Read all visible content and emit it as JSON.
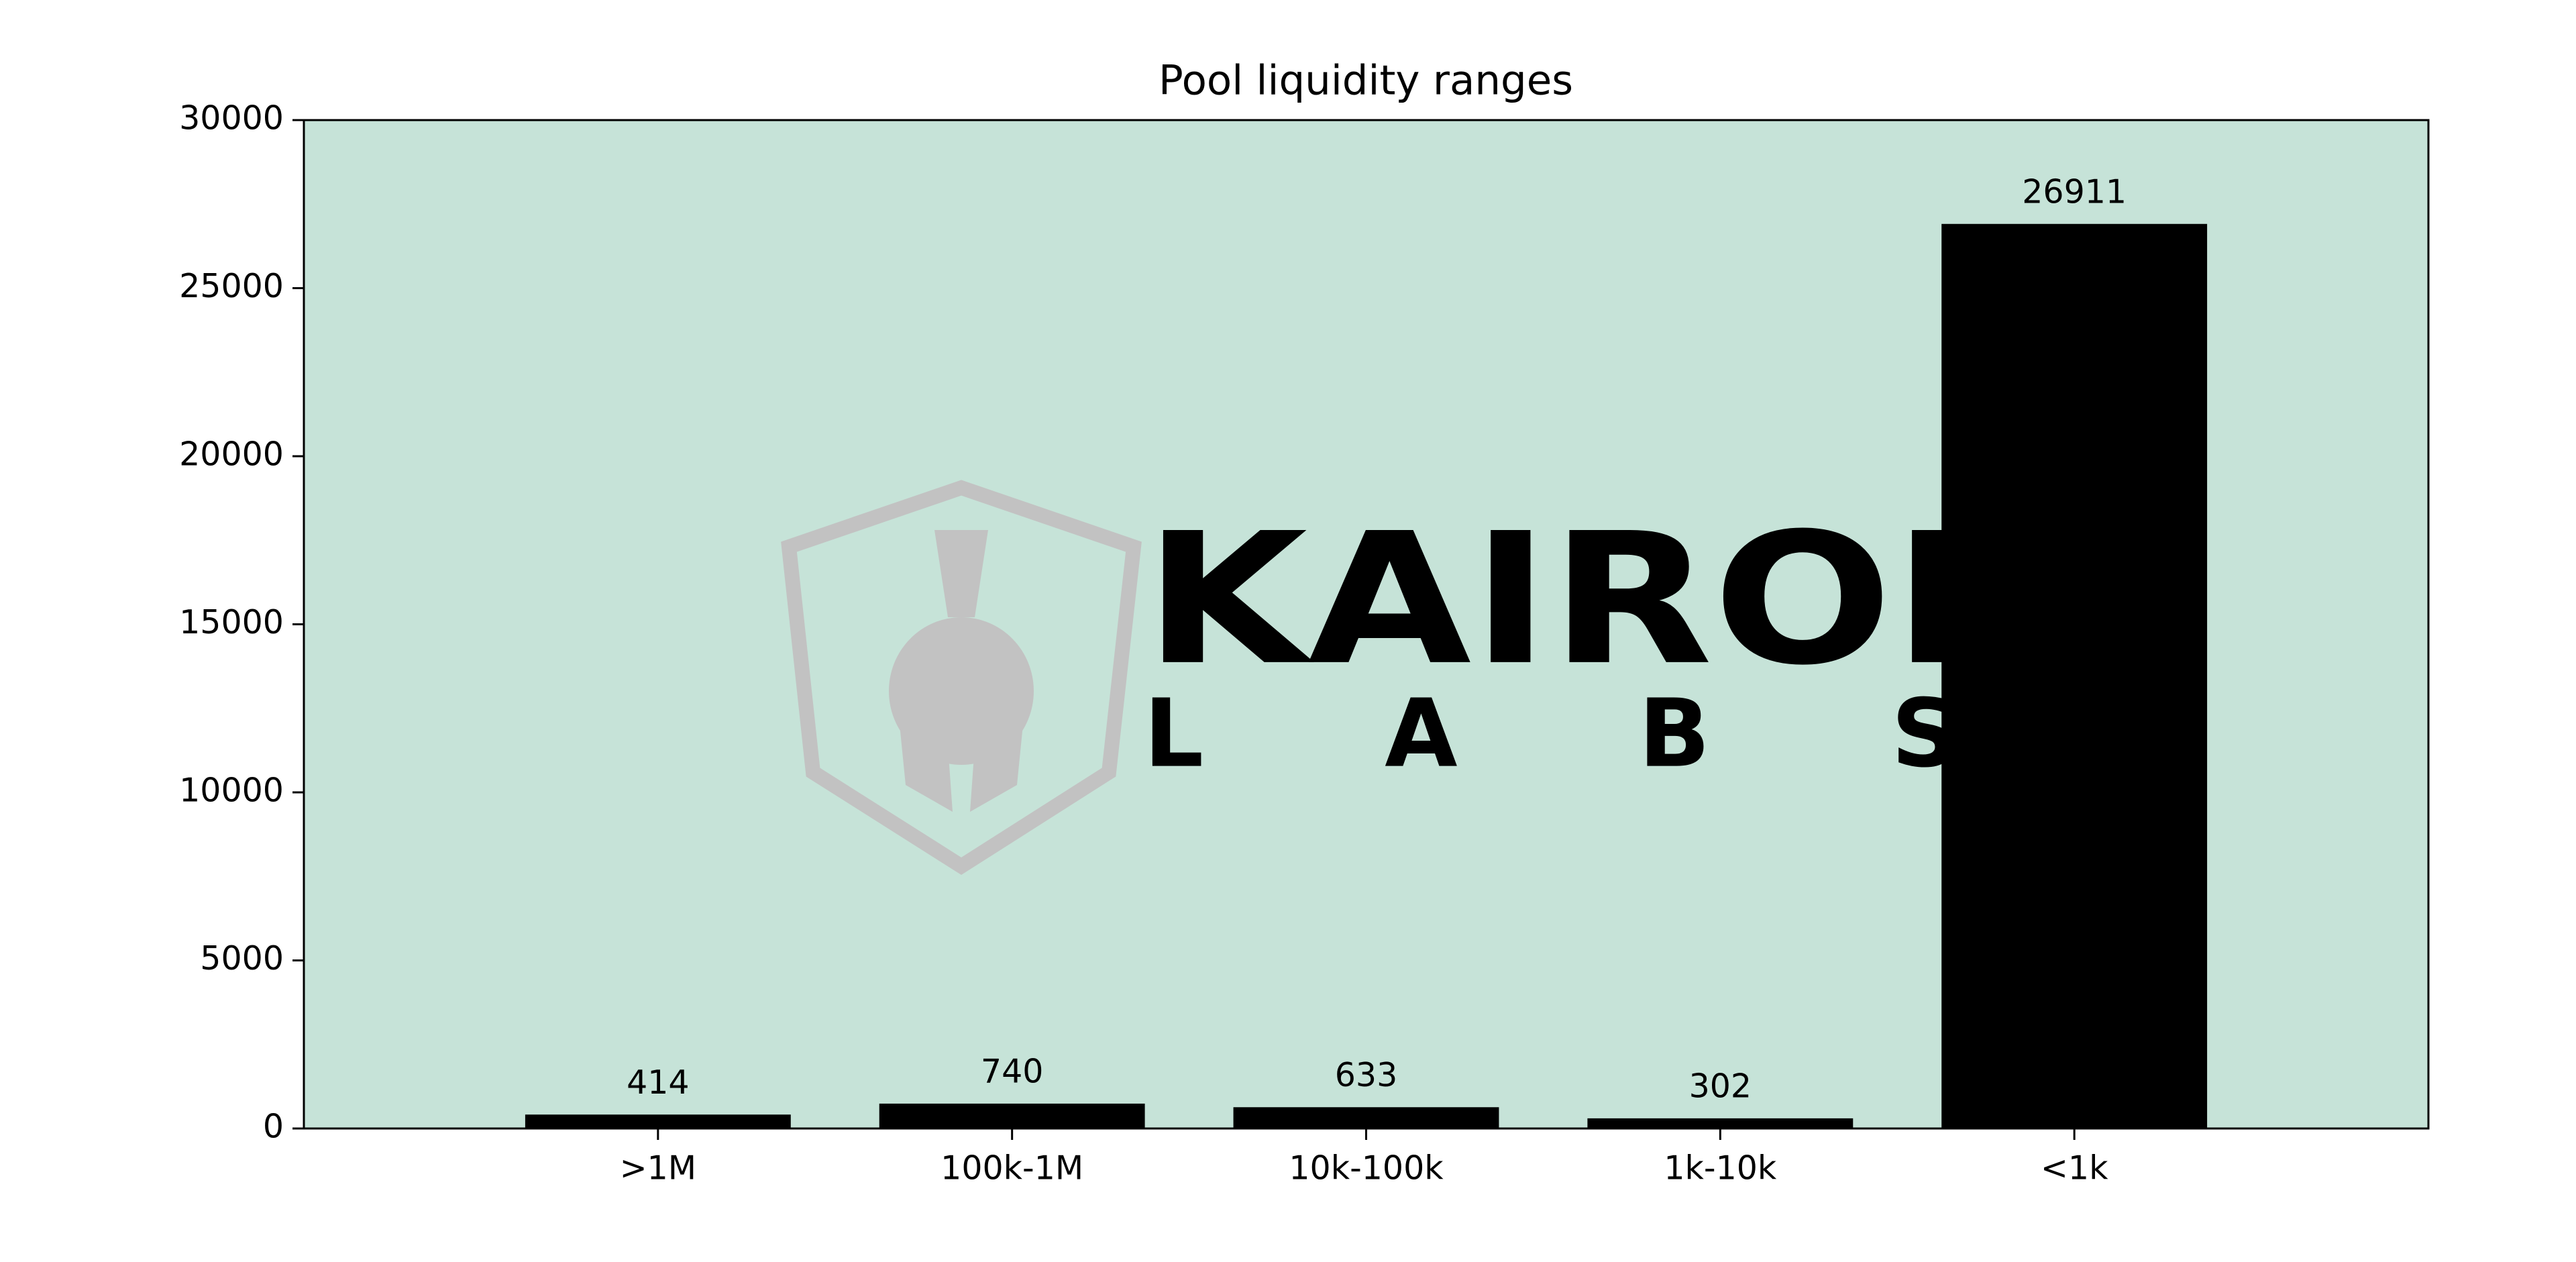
{
  "chart_data": {
    "type": "bar",
    "title": "Pool liquidity ranges",
    "categories": [
      ">1M",
      "100k-1M",
      "10k-100k",
      "1k-10k",
      "<1k"
    ],
    "values": [
      414,
      740,
      633,
      302,
      26911
    ],
    "color": "#000000",
    "ylim": [
      0,
      30000
    ],
    "yticks": [
      0,
      5000,
      10000,
      15000,
      20000,
      25000,
      30000
    ],
    "background": "#c6e3d8",
    "watermark": {
      "top": "KAIRON",
      "bottom": "LABS"
    }
  }
}
